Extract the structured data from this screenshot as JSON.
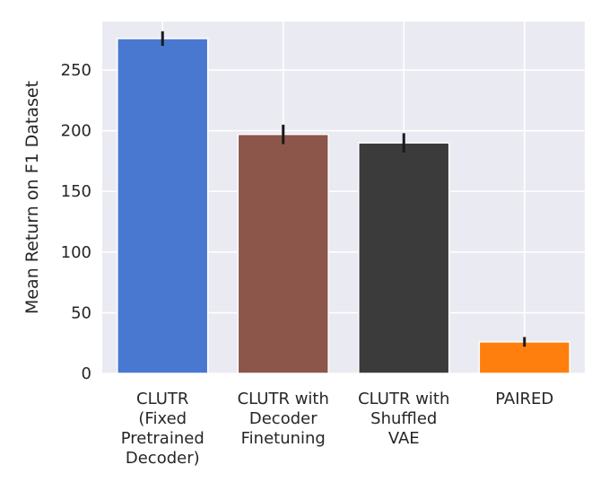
{
  "chart_data": {
    "type": "bar",
    "title": "",
    "xlabel": "",
    "ylabel": "Mean Return on F1 Dataset",
    "ylim": [
      0,
      290
    ],
    "yticks": [
      0,
      50,
      100,
      150,
      200,
      250
    ],
    "grid": true,
    "categories": [
      [
        "CLUTR",
        "(Fixed",
        "Pretrained",
        "Decoder)"
      ],
      [
        "CLUTR with",
        "Decoder",
        "Finetuning"
      ],
      [
        "CLUTR with",
        "Shuffled",
        "VAE"
      ],
      [
        "PAIRED"
      ]
    ],
    "values": [
      276,
      197,
      190,
      26
    ],
    "errors": [
      6,
      8,
      8,
      4
    ],
    "colors": [
      "#4878d0",
      "#8c564b",
      "#3b3b3b",
      "#ff7f0e"
    ]
  }
}
